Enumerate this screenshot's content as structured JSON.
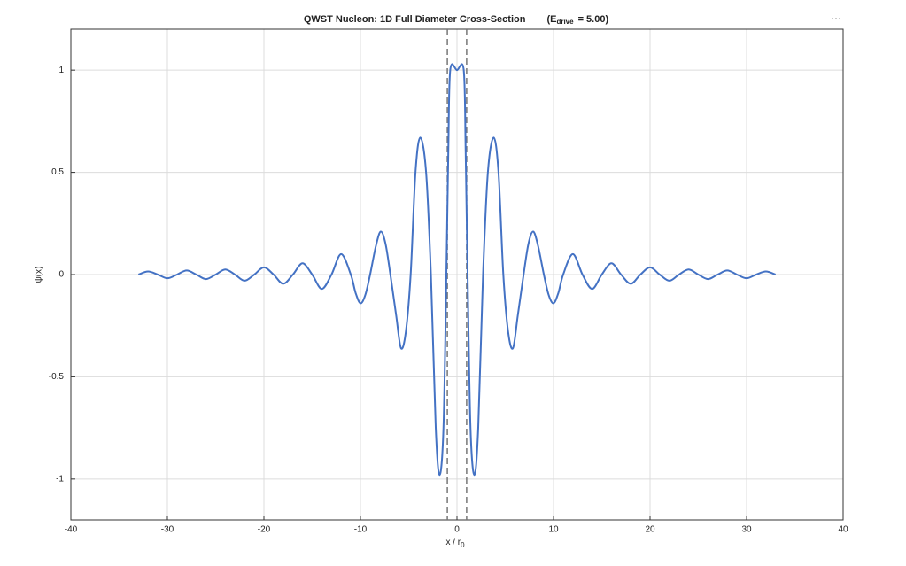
{
  "chart_data": {
    "type": "line",
    "title": "QWST Nucleon:  1D  Full  Diameter  Cross-Section",
    "title_energy": {
      "symbol": "E",
      "subscript": "drive",
      "text": "=  5.00"
    },
    "xlabel": {
      "text": "x  /  r",
      "subscript": "0"
    },
    "ylabel": "ψ(x)",
    "color": "#4472c4",
    "xlim": [
      -40,
      40
    ],
    "ylim": [
      -1.2,
      1.2
    ],
    "xticks": [
      -40,
      -30,
      -20,
      -10,
      0,
      10,
      20,
      30,
      40
    ],
    "yticks": [
      -1,
      -0.5,
      0,
      0.5,
      1
    ],
    "grid": true,
    "vlines": [
      -1,
      1
    ],
    "x": [
      -33,
      -32,
      -31,
      -30,
      -29,
      -28,
      -27,
      -26,
      -25,
      -24,
      -23,
      -22,
      -21,
      -20,
      -19,
      -18,
      -17,
      -16,
      -15,
      -14,
      -13,
      -12,
      -11,
      -10.5,
      -10,
      -9.5,
      -9,
      -8.4,
      -7.9,
      -7.4,
      -6.9,
      -6.3,
      -5.8,
      -5.3,
      -4.8,
      -4.3,
      -3.8,
      -3.2,
      -2.7,
      -2.2,
      -1.8,
      -1.4,
      -1.1,
      -0.9,
      -0.7,
      0,
      0.7,
      0.9,
      1.1,
      1.4,
      1.8,
      2.2,
      2.7,
      3.2,
      3.8,
      4.3,
      4.8,
      5.3,
      5.8,
      6.3,
      6.9,
      7.4,
      7.9,
      8.4,
      9,
      9.5,
      10,
      10.5,
      11,
      12,
      13,
      14,
      15,
      16,
      17,
      18,
      19,
      20,
      21,
      22,
      23,
      24,
      25,
      26,
      27,
      28,
      29,
      30,
      31,
      32,
      33
    ],
    "values": [
      0,
      0.015,
      0,
      -0.018,
      0,
      0.02,
      0,
      -0.022,
      0,
      0.025,
      0,
      -0.03,
      0,
      0.035,
      0,
      -0.045,
      0,
      0.055,
      0,
      -0.07,
      0,
      0.1,
      0,
      -0.09,
      -0.14,
      -0.1,
      0,
      0.14,
      0.21,
      0.15,
      0,
      -0.2,
      -0.36,
      -0.28,
      0,
      0.5,
      0.67,
      0.5,
      0,
      -0.75,
      -0.98,
      -0.75,
      0,
      0.6,
      1,
      1,
      1,
      0.6,
      0,
      -0.75,
      -0.98,
      -0.75,
      0,
      0.5,
      0.67,
      0.5,
      0,
      -0.28,
      -0.36,
      -0.2,
      0,
      0.15,
      0.21,
      0.14,
      0,
      -0.1,
      -0.14,
      -0.09,
      0,
      0.1,
      0,
      -0.07,
      0,
      0.055,
      0,
      -0.045,
      0,
      0.035,
      0,
      -0.03,
      0,
      0.025,
      0,
      -0.022,
      0,
      0.02,
      0,
      -0.018,
      0,
      0.015,
      0
    ]
  }
}
